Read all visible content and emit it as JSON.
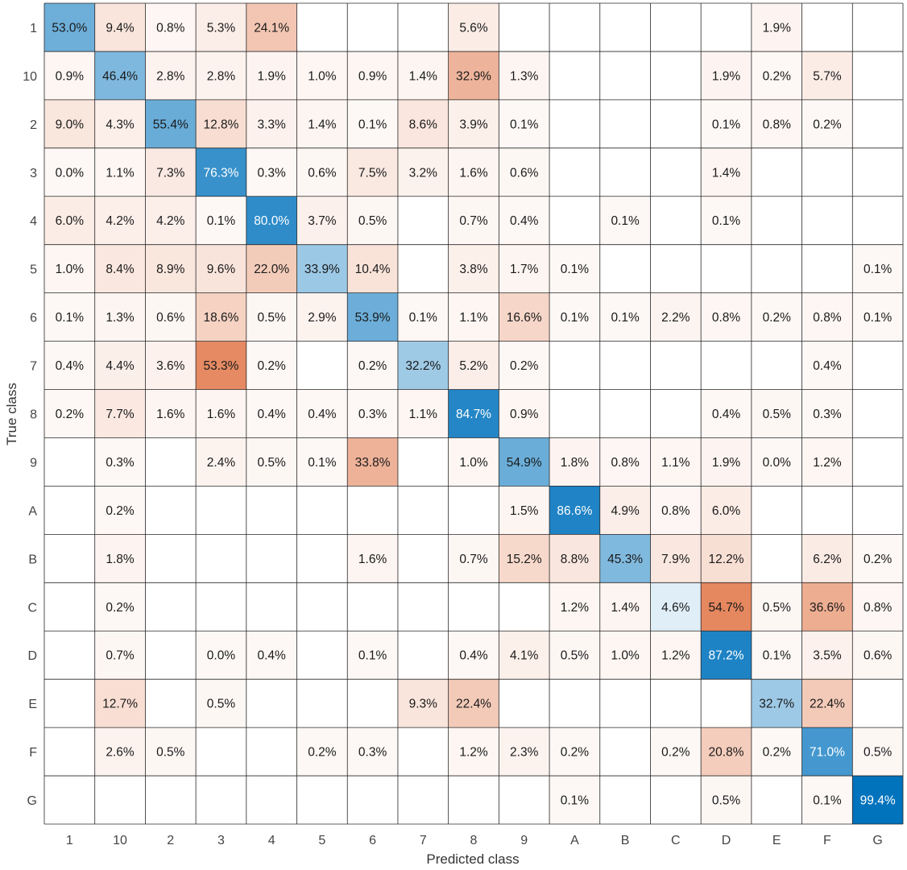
{
  "chart_data": {
    "type": "heatmap",
    "title": "",
    "xlabel": "Predicted class",
    "ylabel": "True class",
    "classes": [
      "1",
      "10",
      "2",
      "3",
      "4",
      "5",
      "6",
      "7",
      "8",
      "9",
      "A",
      "B",
      "C",
      "D",
      "E",
      "F",
      "G"
    ],
    "unit": "%",
    "values": [
      [
        53.0,
        9.4,
        0.8,
        5.3,
        24.1,
        null,
        null,
        null,
        5.6,
        null,
        null,
        null,
        null,
        null,
        1.9,
        null,
        null
      ],
      [
        0.9,
        46.4,
        2.8,
        2.8,
        1.9,
        1.0,
        0.9,
        1.4,
        32.9,
        1.3,
        null,
        null,
        null,
        1.9,
        0.2,
        5.7,
        null
      ],
      [
        9.0,
        4.3,
        55.4,
        12.8,
        3.3,
        1.4,
        0.1,
        8.6,
        3.9,
        0.1,
        null,
        null,
        null,
        0.1,
        0.8,
        0.2,
        null
      ],
      [
        0.0,
        1.1,
        7.3,
        76.3,
        0.3,
        0.6,
        7.5,
        3.2,
        1.6,
        0.6,
        null,
        null,
        null,
        1.4,
        null,
        null,
        null
      ],
      [
        6.0,
        4.2,
        4.2,
        0.1,
        80.0,
        3.7,
        0.5,
        null,
        0.7,
        0.4,
        null,
        0.1,
        null,
        0.1,
        null,
        null,
        null
      ],
      [
        1.0,
        8.4,
        8.9,
        9.6,
        22.0,
        33.9,
        10.4,
        null,
        3.8,
        1.7,
        0.1,
        null,
        null,
        null,
        null,
        null,
        0.1
      ],
      [
        0.1,
        1.3,
        0.6,
        18.6,
        0.5,
        2.9,
        53.9,
        0.1,
        1.1,
        16.6,
        0.1,
        0.1,
        2.2,
        0.8,
        0.2,
        0.8,
        0.1
      ],
      [
        0.4,
        4.4,
        3.6,
        53.3,
        0.2,
        null,
        0.2,
        32.2,
        5.2,
        0.2,
        null,
        null,
        null,
        null,
        null,
        0.4,
        null
      ],
      [
        0.2,
        7.7,
        1.6,
        1.6,
        0.4,
        0.4,
        0.3,
        1.1,
        84.7,
        0.9,
        null,
        null,
        null,
        0.4,
        0.5,
        0.3,
        null
      ],
      [
        null,
        0.3,
        null,
        2.4,
        0.5,
        0.1,
        33.8,
        null,
        1.0,
        54.9,
        1.8,
        0.8,
        1.1,
        1.9,
        0.0,
        1.2,
        null
      ],
      [
        null,
        0.2,
        null,
        null,
        null,
        null,
        null,
        null,
        null,
        1.5,
        86.6,
        4.9,
        0.8,
        6.0,
        null,
        null,
        null
      ],
      [
        null,
        1.8,
        null,
        null,
        null,
        null,
        1.6,
        null,
        0.7,
        15.2,
        8.8,
        45.3,
        7.9,
        12.2,
        null,
        6.2,
        0.2
      ],
      [
        null,
        0.2,
        null,
        null,
        null,
        null,
        null,
        null,
        null,
        null,
        1.2,
        1.4,
        4.6,
        54.7,
        0.5,
        36.6,
        0.8
      ],
      [
        null,
        0.7,
        null,
        0.0,
        0.4,
        null,
        0.1,
        null,
        0.4,
        4.1,
        0.5,
        1.0,
        1.2,
        87.2,
        0.1,
        3.5,
        0.6
      ],
      [
        null,
        12.7,
        null,
        0.5,
        null,
        null,
        null,
        9.3,
        22.4,
        null,
        null,
        null,
        null,
        null,
        32.7,
        22.4,
        null
      ],
      [
        null,
        2.6,
        0.5,
        null,
        null,
        0.2,
        0.3,
        null,
        1.2,
        2.3,
        0.2,
        null,
        0.2,
        20.8,
        0.2,
        71.0,
        0.5
      ],
      [
        null,
        null,
        null,
        null,
        null,
        null,
        null,
        null,
        null,
        null,
        0.1,
        null,
        null,
        0.5,
        null,
        0.1,
        99.4
      ]
    ],
    "colors": {
      "diagonal": "#0072bd",
      "off_diagonal": "#d95319",
      "grid": "#262626",
      "text_dark": "#1a1a1a",
      "text_light": "#ffffff"
    }
  }
}
